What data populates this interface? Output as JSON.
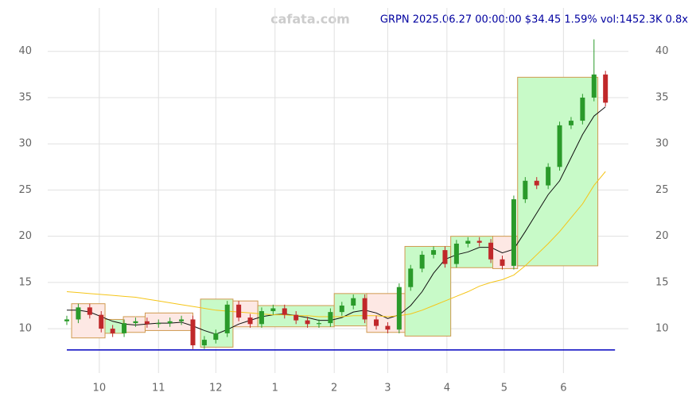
{
  "chart_data": {
    "type": "candlestick",
    "title": "GRPN 2025.06.27 00:00:00 $34.45 1.59% vol:1452.3K 0.8x",
    "watermark": "cafata.com",
    "xlim": [
      3,
      307
    ],
    "ylim": [
      5.2,
      44.7
    ],
    "xticks": [
      {
        "value": 30,
        "label": "10"
      },
      {
        "value": 61,
        "label": "11"
      },
      {
        "value": 91,
        "label": "12"
      },
      {
        "value": 122,
        "label": "1"
      },
      {
        "value": 153,
        "label": "2"
      },
      {
        "value": 181,
        "label": "3"
      },
      {
        "value": 212,
        "label": "4"
      },
      {
        "value": 242,
        "label": "5"
      },
      {
        "value": 273,
        "label": "6"
      }
    ],
    "yticks": [
      10,
      15,
      20,
      25,
      30,
      35,
      40
    ],
    "grid": true,
    "up_color": "#2a9a2a",
    "down_color": "#c0282a",
    "x": [
      13,
      19,
      25,
      31,
      37,
      43,
      49,
      55,
      61,
      67,
      73,
      79,
      85,
      91,
      97,
      103,
      109,
      115,
      121,
      127,
      133,
      139,
      145,
      151,
      157,
      163,
      169,
      175,
      181,
      187,
      193,
      199,
      205,
      211,
      217,
      223,
      229,
      235,
      241,
      247,
      253,
      259,
      265,
      271,
      277,
      283,
      289,
      295
    ],
    "open": [
      10.8,
      11.0,
      12.3,
      11.5,
      10.0,
      9.5,
      10.6,
      10.8,
      10.5,
      10.6,
      10.8,
      11.0,
      8.2,
      8.8,
      9.5,
      12.6,
      11.2,
      10.5,
      11.9,
      12.2,
      11.5,
      10.9,
      10.5,
      10.6,
      11.8,
      12.5,
      13.3,
      11.0,
      10.3,
      9.9,
      14.5,
      16.5,
      18.0,
      18.5,
      17.0,
      19.2,
      19.5,
      19.3,
      17.5,
      16.8,
      24.0,
      26.0,
      25.5,
      27.5,
      32.0,
      32.5,
      35.0,
      37.5
    ],
    "high": [
      11.4,
      12.7,
      12.7,
      11.9,
      10.4,
      11.0,
      11.2,
      11.2,
      11.0,
      11.2,
      11.4,
      11.4,
      9.2,
      9.9,
      13.0,
      13.0,
      11.6,
      12.3,
      12.6,
      12.6,
      11.9,
      11.3,
      11.0,
      12.2,
      12.9,
      13.7,
      13.7,
      11.4,
      10.7,
      14.9,
      16.9,
      18.4,
      18.9,
      18.9,
      19.6,
      19.9,
      19.9,
      19.7,
      17.9,
      24.4,
      26.4,
      26.4,
      27.9,
      32.4,
      32.9,
      35.4,
      41.3,
      37.9
    ],
    "low": [
      10.4,
      10.6,
      11.1,
      9.6,
      9.1,
      9.1,
      10.2,
      10.1,
      10.1,
      10.2,
      10.4,
      7.8,
      7.8,
      8.4,
      9.1,
      10.8,
      10.1,
      10.1,
      11.5,
      11.1,
      10.5,
      10.1,
      10.1,
      10.2,
      11.4,
      12.1,
      10.6,
      9.9,
      9.5,
      9.5,
      14.1,
      16.1,
      17.6,
      16.6,
      16.6,
      18.8,
      18.9,
      17.1,
      16.4,
      16.4,
      23.6,
      25.1,
      25.1,
      27.1,
      31.6,
      32.1,
      34.6,
      34.05
    ],
    "close": [
      11.0,
      12.3,
      11.5,
      10.0,
      9.5,
      10.6,
      10.8,
      10.5,
      10.6,
      10.8,
      11.0,
      8.2,
      8.8,
      9.5,
      12.6,
      11.2,
      10.5,
      11.9,
      12.2,
      11.5,
      10.9,
      10.5,
      10.6,
      11.8,
      12.5,
      13.3,
      11.0,
      10.3,
      9.9,
      14.5,
      16.5,
      18.0,
      18.5,
      17.0,
      19.2,
      19.5,
      19.3,
      17.5,
      16.8,
      24.0,
      26.0,
      25.5,
      27.5,
      32.0,
      32.5,
      35.0,
      37.5,
      34.45
    ],
    "lines": [
      {
        "color": "#111111",
        "values": [
          12,
          12,
          11.8,
          11.3,
          10.8,
          10.5,
          10.4,
          10.5,
          10.6,
          10.6,
          10.7,
          10.3,
          9.8,
          9.4,
          9.9,
          10.5,
          10.9,
          11.3,
          11.5,
          11.6,
          11.4,
          11.2,
          10.9,
          10.9,
          11.2,
          11.8,
          12.0,
          11.7,
          11.1,
          11.5,
          12.5,
          14.0,
          16.0,
          17.5,
          18.0,
          18.3,
          18.8,
          18.8,
          18.2,
          18.6,
          20.5,
          22.5,
          24.5,
          26.0,
          28.5,
          31.0,
          33.0,
          34.0
        ]
      },
      {
        "color": "#f5c518",
        "values": [
          14,
          13.9,
          13.8,
          13.7,
          13.6,
          13.5,
          13.4,
          13.2,
          13.0,
          12.8,
          12.6,
          12.4,
          12.2,
          12.0,
          11.9,
          11.8,
          11.7,
          11.6,
          11.5,
          11.5,
          11.4,
          11.4,
          11.3,
          11.3,
          11.3,
          11.4,
          11.4,
          11.4,
          11.3,
          11.4,
          11.6,
          12.0,
          12.5,
          13.0,
          13.5,
          14.0,
          14.6,
          15.0,
          15.3,
          15.8,
          16.8,
          18.0,
          19.2,
          20.5,
          22.0,
          23.5,
          25.5,
          27.0
        ]
      }
    ],
    "boxes": [
      {
        "x": [
          15.5,
          33
        ],
        "y": [
          9,
          12.7
        ],
        "color": "pink"
      },
      {
        "x": [
          33,
          42.6
        ],
        "y": [
          9.5,
          11
        ],
        "color": "green"
      },
      {
        "x": [
          42.6,
          54
        ],
        "y": [
          9.6,
          11.3
        ],
        "color": "pink"
      },
      {
        "x": [
          54,
          79
        ],
        "y": [
          9.8,
          11.7
        ],
        "color": "pink"
      },
      {
        "x": [
          83,
          100
        ],
        "y": [
          8,
          13.2
        ],
        "color": "green"
      },
      {
        "x": [
          100,
          113
        ],
        "y": [
          10.2,
          13
        ],
        "color": "pink"
      },
      {
        "x": [
          113,
          153
        ],
        "y": [
          10.2,
          12.5
        ],
        "color": "green"
      },
      {
        "x": [
          153,
          170
        ],
        "y": [
          10.3,
          13.8
        ],
        "color": "green"
      },
      {
        "x": [
          170,
          190
        ],
        "y": [
          9.6,
          13.8
        ],
        "color": "pink"
      },
      {
        "x": [
          190,
          214
        ],
        "y": [
          9.2,
          18.9
        ],
        "color": "green"
      },
      {
        "x": [
          214,
          236
        ],
        "y": [
          16.6,
          20
        ],
        "color": "green"
      },
      {
        "x": [
          236,
          249
        ],
        "y": [
          16.5,
          20
        ],
        "color": "pink"
      },
      {
        "x": [
          249,
          291
        ],
        "y": [
          16.8,
          37.2
        ],
        "color": "green"
      }
    ],
    "hline": 7.7
  }
}
